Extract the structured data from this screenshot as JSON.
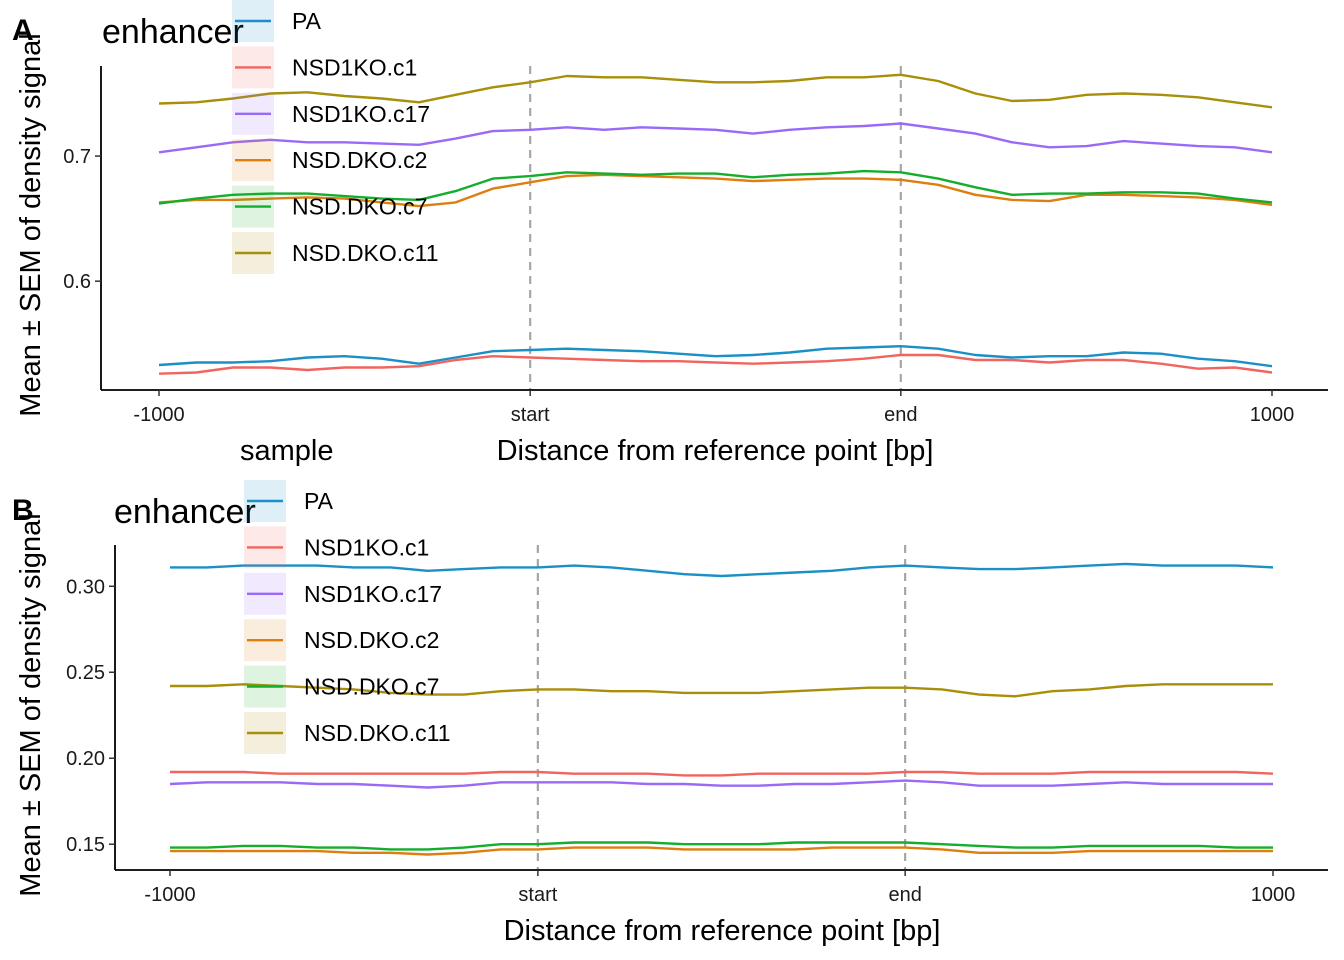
{
  "chart_data": [
    {
      "type": "line",
      "tag": "A",
      "title": "enhancer",
      "xlabel": "Distance from reference point [bp]",
      "ylabel": "Mean ± SEM of density signal",
      "xlim": [
        -1000,
        1000
      ],
      "ylim": [
        0.513,
        0.772
      ],
      "xticks": [
        -1000,
        -333,
        333,
        1000
      ],
      "xtick_labels": [
        "-1000",
        "start",
        "end",
        "1000"
      ],
      "yticks": [
        0.6,
        0.7
      ],
      "ytick_labels": [
        "0.6",
        "0.7"
      ],
      "vlines": [
        -333,
        333
      ],
      "grid": false,
      "legend_placement": "top-left",
      "x": [
        -1000,
        -933,
        -867,
        -800,
        -733,
        -667,
        -600,
        -533,
        -467,
        -400,
        -333,
        -267,
        -200,
        -133,
        -67,
        0,
        67,
        133,
        200,
        267,
        333,
        400,
        467,
        533,
        600,
        667,
        733,
        800,
        867,
        933,
        1000
      ],
      "series": [
        {
          "name": "PA",
          "color": "#1b8fc6",
          "values": [
            0.533,
            0.535,
            0.535,
            0.536,
            0.539,
            0.54,
            0.538,
            0.534,
            0.539,
            0.544,
            0.545,
            0.546,
            0.545,
            0.544,
            0.542,
            0.54,
            0.541,
            0.543,
            0.546,
            0.547,
            0.548,
            0.546,
            0.541,
            0.539,
            0.54,
            0.54,
            0.543,
            0.542,
            0.538,
            0.536,
            0.532
          ]
        },
        {
          "name": "NSD1KO.c1",
          "color": "#f0655f",
          "values": [
            0.526,
            0.527,
            0.531,
            0.531,
            0.529,
            0.531,
            0.531,
            0.532,
            0.537,
            0.54,
            0.539,
            0.538,
            0.537,
            0.536,
            0.536,
            0.535,
            0.534,
            0.535,
            0.536,
            0.538,
            0.541,
            0.541,
            0.537,
            0.537,
            0.535,
            0.537,
            0.537,
            0.534,
            0.53,
            0.531,
            0.527
          ]
        },
        {
          "name": "NSD1KO.c17",
          "color": "#9a6af7",
          "values": [
            0.703,
            0.707,
            0.711,
            0.713,
            0.711,
            0.711,
            0.71,
            0.709,
            0.714,
            0.72,
            0.721,
            0.723,
            0.721,
            0.723,
            0.722,
            0.721,
            0.718,
            0.721,
            0.723,
            0.724,
            0.726,
            0.722,
            0.718,
            0.711,
            0.707,
            0.708,
            0.712,
            0.71,
            0.708,
            0.707,
            0.703
          ]
        },
        {
          "name": "NSD.DKO.c2",
          "color": "#de7e0e",
          "values": [
            0.663,
            0.665,
            0.665,
            0.666,
            0.667,
            0.666,
            0.663,
            0.66,
            0.663,
            0.674,
            0.679,
            0.684,
            0.685,
            0.684,
            0.683,
            0.682,
            0.68,
            0.681,
            0.682,
            0.682,
            0.681,
            0.677,
            0.669,
            0.665,
            0.664,
            0.669,
            0.669,
            0.668,
            0.667,
            0.665,
            0.661
          ]
        },
        {
          "name": "NSD.DKO.c7",
          "color": "#14ae2c",
          "values": [
            0.662,
            0.666,
            0.669,
            0.67,
            0.67,
            0.668,
            0.666,
            0.665,
            0.672,
            0.682,
            0.684,
            0.687,
            0.686,
            0.685,
            0.686,
            0.686,
            0.683,
            0.685,
            0.686,
            0.688,
            0.687,
            0.682,
            0.675,
            0.669,
            0.67,
            0.67,
            0.671,
            0.671,
            0.67,
            0.666,
            0.663
          ]
        },
        {
          "name": "NSD.DKO.c11",
          "color": "#a98f09",
          "values": [
            0.742,
            0.743,
            0.746,
            0.75,
            0.751,
            0.748,
            0.746,
            0.743,
            0.749,
            0.755,
            0.759,
            0.764,
            0.763,
            0.763,
            0.761,
            0.759,
            0.759,
            0.76,
            0.763,
            0.763,
            0.765,
            0.76,
            0.75,
            0.744,
            0.745,
            0.749,
            0.75,
            0.749,
            0.747,
            0.743,
            0.739
          ]
        }
      ]
    },
    {
      "type": "line",
      "tag": "B",
      "title": "enhancer",
      "xlabel": "Distance from reference point [bp]",
      "ylabel": "Mean ± SEM of density signal",
      "xlim": [
        -1000,
        1000
      ],
      "ylim": [
        0.135,
        0.324
      ],
      "xticks": [
        -1000,
        -333,
        333,
        1000
      ],
      "xtick_labels": [
        "-1000",
        "start",
        "end",
        "1000"
      ],
      "yticks": [
        0.15,
        0.2,
        0.25,
        0.3
      ],
      "ytick_labels": [
        "0.15",
        "0.20",
        "0.25",
        "0.30"
      ],
      "vlines": [
        -333,
        333
      ],
      "grid": false,
      "legend_placement": "top-left",
      "x": [
        -1000,
        -933,
        -867,
        -800,
        -733,
        -667,
        -600,
        -533,
        -467,
        -400,
        -333,
        -267,
        -200,
        -133,
        -67,
        0,
        67,
        133,
        200,
        267,
        333,
        400,
        467,
        533,
        600,
        667,
        733,
        800,
        867,
        933,
        1000
      ],
      "series": [
        {
          "name": "PA",
          "color": "#1b8fc6",
          "values": [
            0.311,
            0.311,
            0.312,
            0.312,
            0.312,
            0.311,
            0.311,
            0.309,
            0.31,
            0.311,
            0.311,
            0.312,
            0.311,
            0.309,
            0.307,
            0.306,
            0.307,
            0.308,
            0.309,
            0.311,
            0.312,
            0.311,
            0.31,
            0.31,
            0.311,
            0.312,
            0.313,
            0.312,
            0.312,
            0.312,
            0.311
          ]
        },
        {
          "name": "NSD1KO.c1",
          "color": "#f0655f",
          "values": [
            0.192,
            0.192,
            0.192,
            0.191,
            0.191,
            0.191,
            0.191,
            0.191,
            0.191,
            0.192,
            0.192,
            0.191,
            0.191,
            0.191,
            0.19,
            0.19,
            0.191,
            0.191,
            0.191,
            0.191,
            0.192,
            0.192,
            0.191,
            0.191,
            0.191,
            0.192,
            0.192,
            0.192,
            0.192,
            0.192,
            0.191
          ]
        },
        {
          "name": "NSD1KO.c17",
          "color": "#9a6af7",
          "values": [
            0.185,
            0.186,
            0.186,
            0.186,
            0.185,
            0.185,
            0.184,
            0.183,
            0.184,
            0.186,
            0.186,
            0.186,
            0.186,
            0.185,
            0.185,
            0.184,
            0.184,
            0.185,
            0.185,
            0.186,
            0.187,
            0.186,
            0.184,
            0.184,
            0.184,
            0.185,
            0.186,
            0.185,
            0.185,
            0.185,
            0.185
          ]
        },
        {
          "name": "NSD.DKO.c2",
          "color": "#de7e0e",
          "values": [
            0.146,
            0.146,
            0.146,
            0.146,
            0.146,
            0.145,
            0.145,
            0.144,
            0.145,
            0.147,
            0.147,
            0.148,
            0.148,
            0.148,
            0.147,
            0.147,
            0.147,
            0.147,
            0.148,
            0.148,
            0.148,
            0.147,
            0.145,
            0.145,
            0.145,
            0.146,
            0.146,
            0.146,
            0.146,
            0.146,
            0.146
          ]
        },
        {
          "name": "NSD.DKO.c7",
          "color": "#14ae2c",
          "values": [
            0.148,
            0.148,
            0.149,
            0.149,
            0.148,
            0.148,
            0.147,
            0.147,
            0.148,
            0.15,
            0.15,
            0.151,
            0.151,
            0.151,
            0.15,
            0.15,
            0.15,
            0.151,
            0.151,
            0.151,
            0.151,
            0.15,
            0.149,
            0.148,
            0.148,
            0.149,
            0.149,
            0.149,
            0.149,
            0.148,
            0.148
          ]
        },
        {
          "name": "NSD.DKO.c11",
          "color": "#a98f09",
          "values": [
            0.242,
            0.242,
            0.243,
            0.242,
            0.241,
            0.24,
            0.238,
            0.237,
            0.237,
            0.239,
            0.24,
            0.24,
            0.239,
            0.239,
            0.238,
            0.238,
            0.238,
            0.239,
            0.24,
            0.241,
            0.241,
            0.24,
            0.237,
            0.236,
            0.239,
            0.24,
            0.242,
            0.243,
            0.243,
            0.243,
            0.243
          ]
        }
      ]
    }
  ],
  "legend": {
    "title": "sample",
    "items": [
      "PA",
      "NSD1KO.c1",
      "NSD1KO.c17",
      "NSD.DKO.c2",
      "NSD.DKO.c7",
      "NSD.DKO.c11"
    ]
  }
}
